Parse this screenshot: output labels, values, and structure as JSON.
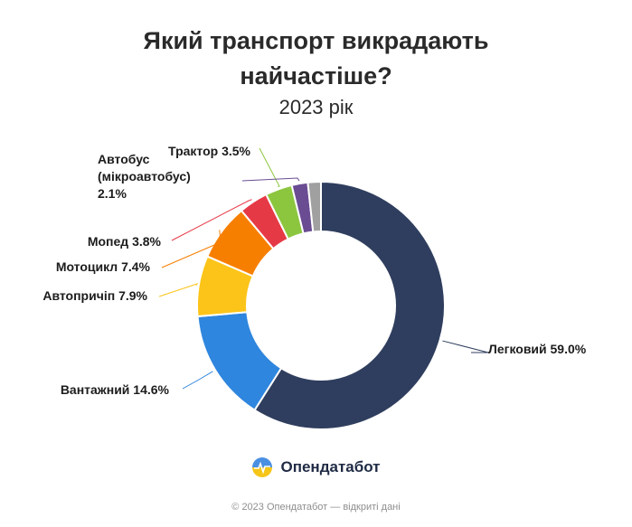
{
  "title_line1": "Який транспорт викрадають",
  "title_line2": "найчастіше?",
  "subtitle": "2023 рік",
  "brand": {
    "name": "Опендатабот",
    "icon": "opendatabot-logo-icon"
  },
  "footer": "© 2023 Опендатабот — відкриті дані",
  "chart_data": {
    "type": "pie",
    "style": "donut",
    "title": "Який транспорт викрадають найчастіше?",
    "subtitle": "2023 рік",
    "slices": [
      {
        "label": "Легковий",
        "value": 59.0,
        "display": "Легковий 59.0%",
        "color": "#2f3e5e"
      },
      {
        "label": "Вантажний",
        "value": 14.6,
        "display": "Вантажний 14.6%",
        "color": "#2e86de"
      },
      {
        "label": "Автопричіп",
        "value": 7.9,
        "display": "Автопричіп 7.9%",
        "color": "#fcc419"
      },
      {
        "label": "Мотоцикл",
        "value": 7.4,
        "display": "Мотоцикл 7.4%",
        "color": "#f77f00"
      },
      {
        "label": "Мопед",
        "value": 3.8,
        "display": "Мопед 3.8%",
        "color": "#e63946"
      },
      {
        "label": "Трактор",
        "value": 3.5,
        "display": "Трактор 3.5%",
        "color": "#8cc63f"
      },
      {
        "label": "Автобус (мікроавтобус)",
        "value": 2.1,
        "display": [
          "Автобус",
          "(мікроавтобус)",
          "2.1%"
        ],
        "color": "#6a4c93"
      },
      {
        "label": "",
        "value": 1.7,
        "display": "",
        "color": "#a0a0a0"
      }
    ]
  }
}
